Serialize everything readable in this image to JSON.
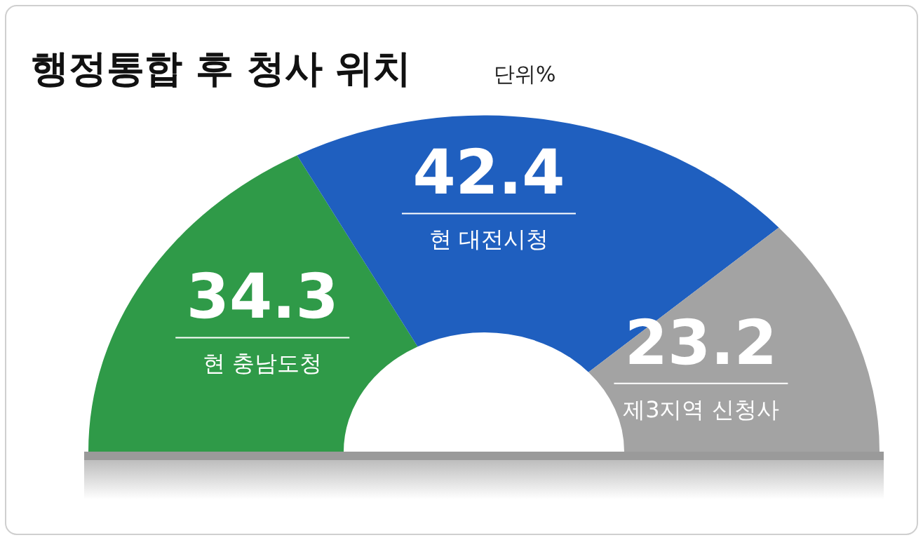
{
  "chart_data": {
    "type": "donut",
    "title": "행정통합 후 청사 위치",
    "subtitle": "단위%",
    "categories": [
      "현 충남도청",
      "현 대전시청",
      "제3지역 신청사"
    ],
    "values": [
      34.3,
      42.4,
      23.2
    ],
    "colors": [
      "#2f9a48",
      "#1f5fbf",
      "#a3a3a3"
    ],
    "data_labels": true
  }
}
